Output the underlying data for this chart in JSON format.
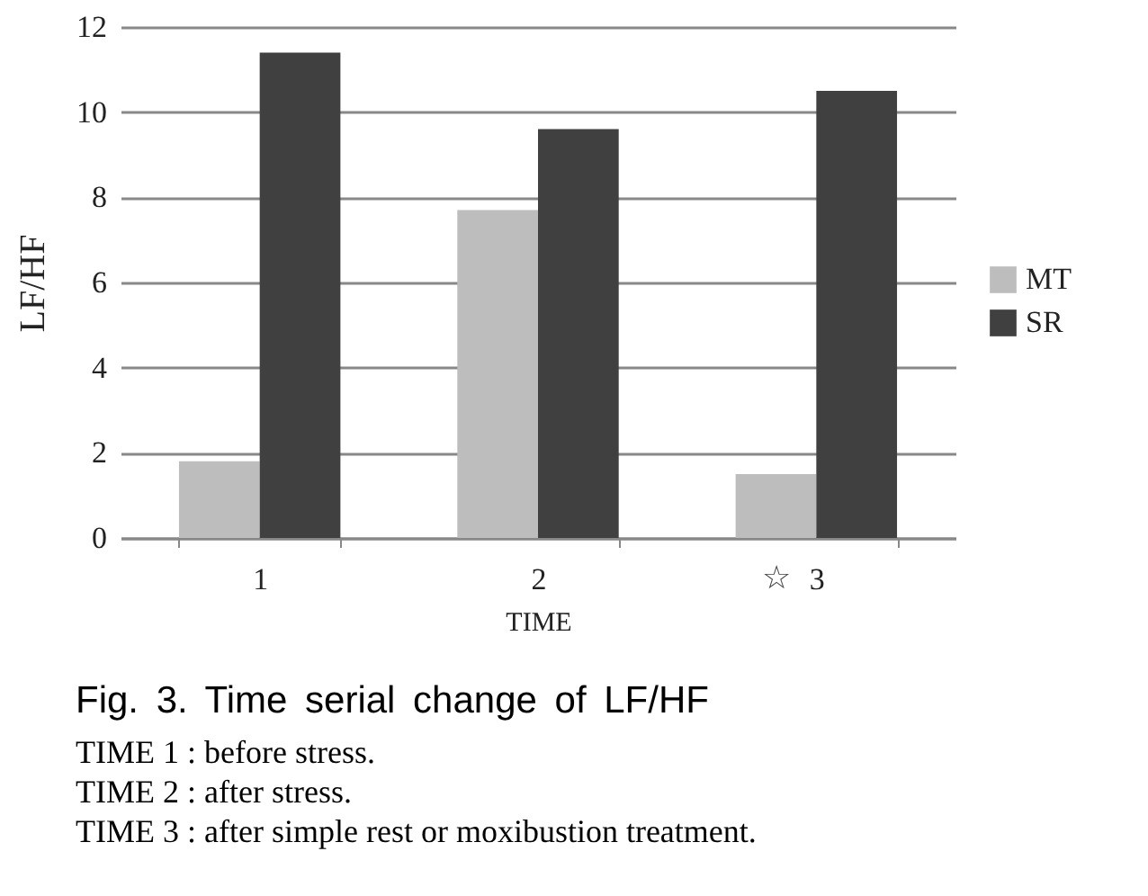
{
  "chart_data": {
    "type": "bar",
    "title": "Fig. 3. Time serial change of LF/HF",
    "xlabel": "TIME",
    "ylabel": "LF/HF",
    "categories": [
      "1",
      "2",
      "3"
    ],
    "series": [
      {
        "name": "MT",
        "color": "#bdbdbd",
        "values": [
          1.8,
          7.7,
          1.5
        ]
      },
      {
        "name": "SR",
        "color": "#404040",
        "values": [
          11.4,
          9.6,
          10.5
        ]
      }
    ],
    "ylim": [
      0,
      12
    ],
    "yticks": [
      0,
      2,
      4,
      6,
      8,
      10,
      12
    ],
    "grid": "y",
    "legend": "right",
    "annotations": [
      "☆",
      "TIME 1 : before stress.",
      "TIME 2 : after stress.",
      "TIME 3 : after simple rest or moxibustion treatment."
    ]
  }
}
